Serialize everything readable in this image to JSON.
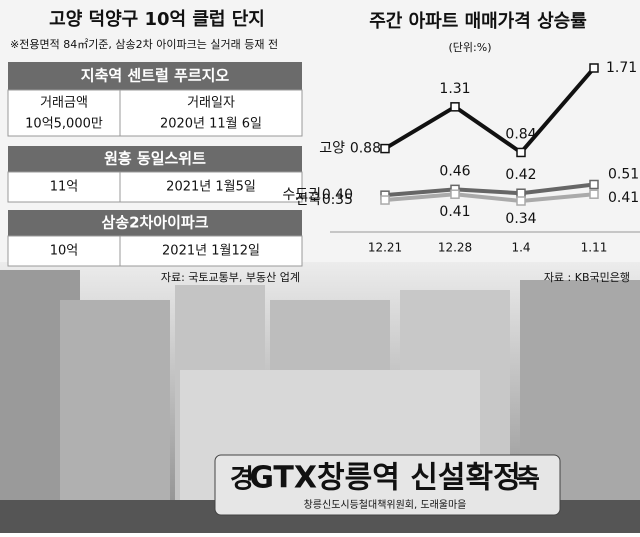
{
  "panel": {
    "title": "고양 덕양구 10억 클럽 단지",
    "note": "※전용면적 84㎡기준, 삼송2차 아이파크는 실거래 등재 전",
    "headers": [
      "거래금액",
      "거래일자"
    ],
    "complexes": [
      {
        "name": "지축역 센트럴 푸르지오",
        "price": "10억5,000만",
        "date": "2020년 11월 6일"
      },
      {
        "name": "원흥 동일스위트",
        "price": "11억",
        "date": "2021년 1월5일"
      },
      {
        "name": "삼송2차아이파크",
        "price": "10억",
        "date": "2021년 1월12일"
      }
    ],
    "source": "자료: 국토교통부, 부동산 업계"
  },
  "chart_data": {
    "type": "line",
    "title": "주간 아파트 매매가격 상승률",
    "unit": "(단위:%)",
    "categories": [
      "12.21",
      "12.28",
      "1.4",
      "1.11"
    ],
    "series": [
      {
        "name": "고양",
        "color": "#111111",
        "values": [
          0.88,
          1.31,
          0.84,
          1.71
        ],
        "value_labels": [
          "0.88",
          "1.31",
          "0.84",
          "1.71"
        ]
      },
      {
        "name": "수도권",
        "color": "#666666",
        "values": [
          0.4,
          0.46,
          0.42,
          0.51
        ],
        "value_labels": [
          "0.40",
          "0.46",
          "0.42",
          "0.51"
        ]
      },
      {
        "name": "전국",
        "color": "#aaaaaa",
        "values": [
          0.35,
          0.41,
          0.34,
          0.41
        ],
        "value_labels": [
          "0.35",
          "0.41",
          "0.34",
          "0.41"
        ]
      }
    ],
    "source": "자료 : KB국민은행"
  },
  "photo": {
    "banner": "GTX창릉역 신설확정",
    "banner_left": "경",
    "banner_right": "축",
    "banner_sub": "창릉신도시등철대책위원회, 도래울마을"
  }
}
